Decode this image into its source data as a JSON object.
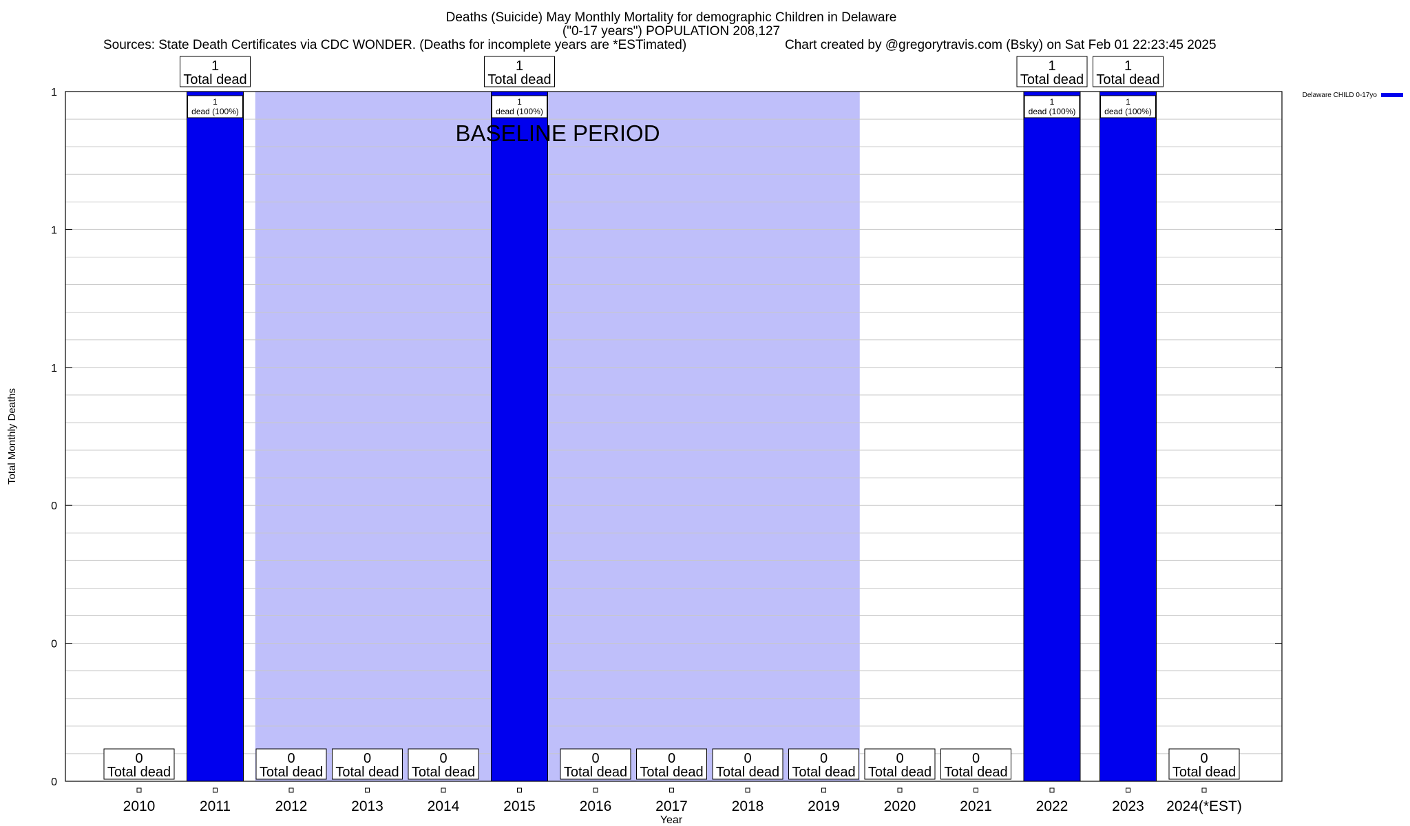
{
  "header": {
    "title_line1": "Deaths (Suicide) May Monthly Mortality for demographic Children in Delaware",
    "title_line2": "(\"0-17 years\") POPULATION 208,127",
    "sources": "Sources: State Death Certificates via CDC WONDER. (Deaths for incomplete years are *ESTimated)",
    "credit": "Chart created by @gregorytravis.com (Bsky) on Sat Feb 01 22:23:45 2025"
  },
  "chart_data": {
    "type": "bar",
    "xlabel": "Year",
    "ylabel": "Total Monthly Deaths",
    "ylim": [
      0,
      1
    ],
    "y_tick_labels": [
      "0",
      "0",
      "0",
      "1",
      "1",
      "1"
    ],
    "grid": true,
    "legend": {
      "position": "top-right",
      "entries": [
        "Delaware CHILD 0-17yo"
      ]
    },
    "categories": [
      "2010",
      "2011",
      "2012",
      "2013",
      "2014",
      "2015",
      "2016",
      "2017",
      "2018",
      "2019",
      "2020",
      "2021",
      "2022",
      "2023",
      "2024(*EST)"
    ],
    "series": [
      {
        "name": "Delaware CHILD 0-17yo",
        "values": [
          0,
          1,
          0,
          0,
          0,
          1,
          0,
          0,
          0,
          0,
          0,
          0,
          1,
          1,
          0
        ],
        "color": "#0000ee"
      }
    ],
    "total_labels": [
      [
        "0",
        "Total dead"
      ],
      [
        "1",
        "Total dead"
      ],
      [
        "0",
        "Total dead"
      ],
      [
        "0",
        "Total dead"
      ],
      [
        "0",
        "Total dead"
      ],
      [
        "1",
        "Total dead"
      ],
      [
        "0",
        "Total dead"
      ],
      [
        "0",
        "Total dead"
      ],
      [
        "0",
        "Total dead"
      ],
      [
        "0",
        "Total dead"
      ],
      [
        "0",
        "Total dead"
      ],
      [
        "0",
        "Total dead"
      ],
      [
        "1",
        "Total dead"
      ],
      [
        "1",
        "Total dead"
      ],
      [
        "0",
        "Total dead"
      ]
    ],
    "bar_labels": [
      null,
      [
        "1",
        "dead (100%)"
      ],
      null,
      null,
      null,
      [
        "1",
        "dead (100%)"
      ],
      null,
      null,
      null,
      null,
      null,
      null,
      [
        "1",
        "dead (100%)"
      ],
      [
        "1",
        "dead (100%)"
      ],
      null
    ],
    "baseline": {
      "label": "BASELINE PERIOD",
      "from": "2012",
      "to": "2019",
      "color": "#bfbffa"
    }
  }
}
